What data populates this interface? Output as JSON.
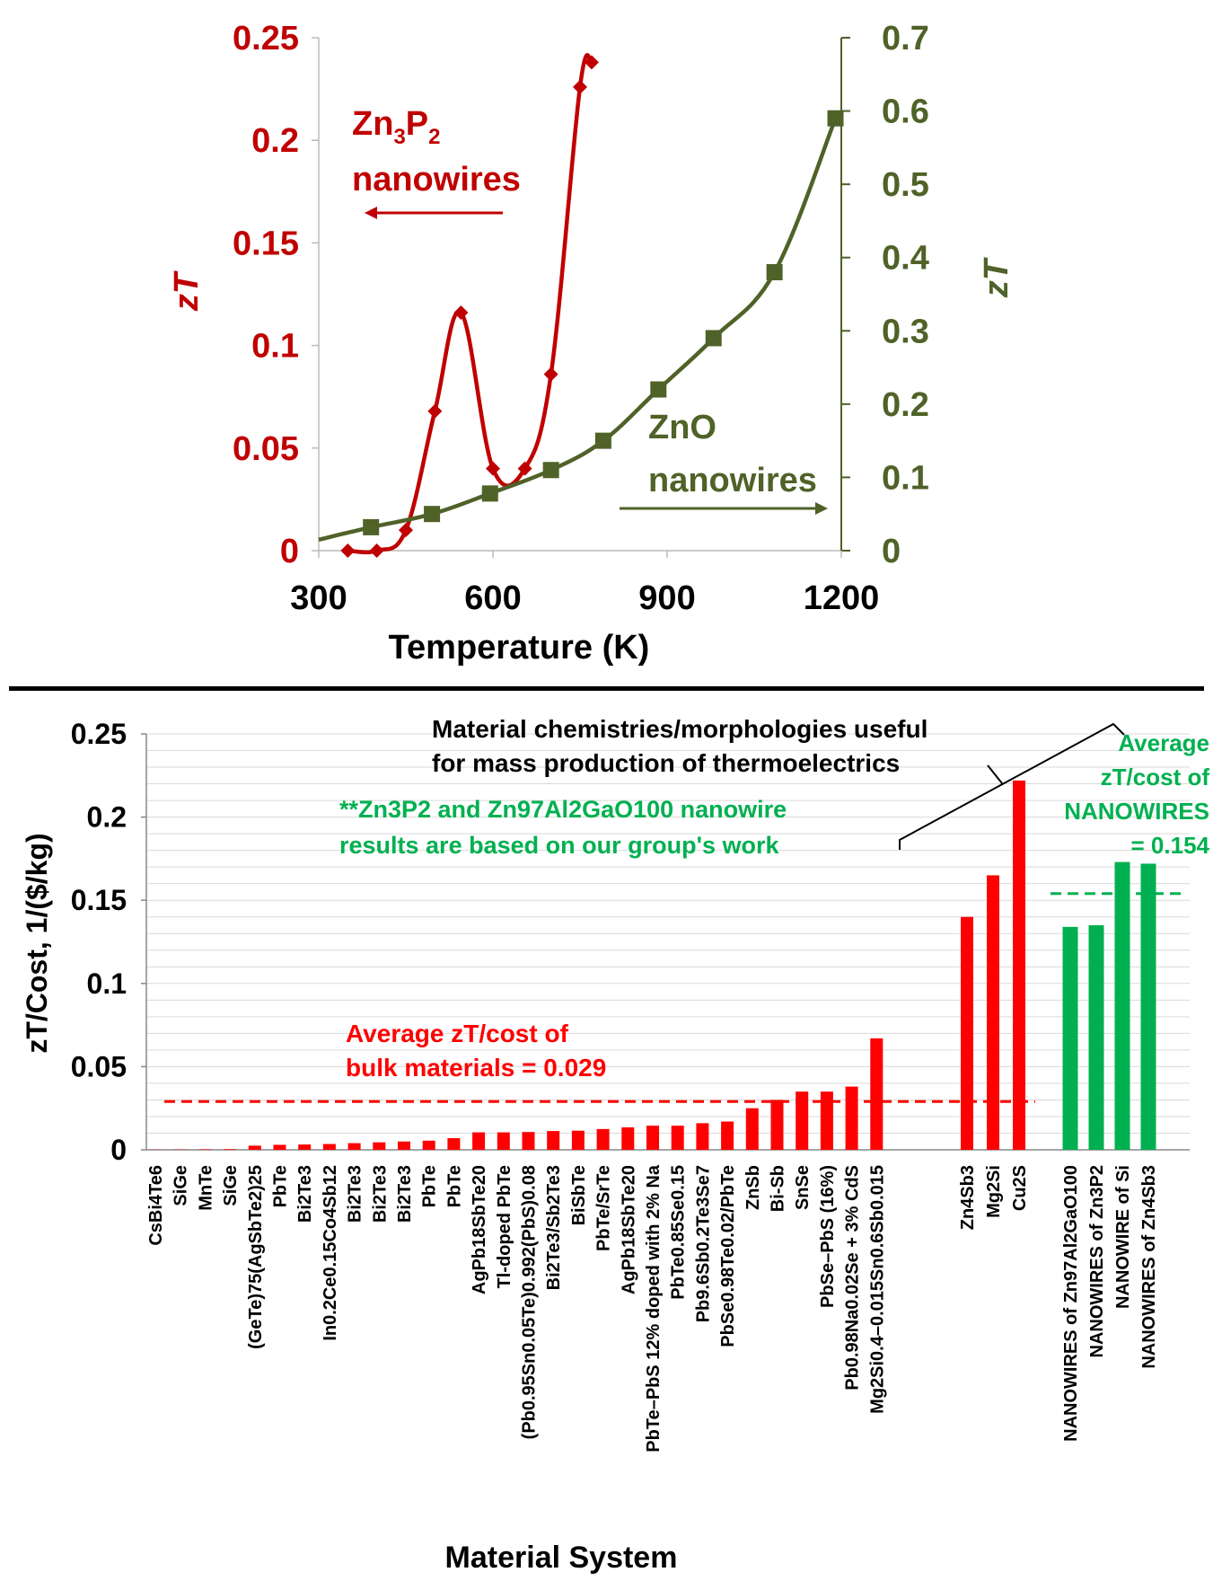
{
  "colors": {
    "zn3p2": "#c00000",
    "zno": "#4f6228",
    "bulk_bar": "#ff0000",
    "nanowire_bar": "#00b050",
    "nanowire_text": "#00b050",
    "bulk_text": "#ff0000"
  },
  "chart_data": [
    {
      "type": "line",
      "xlabel": "Temperature (K)",
      "ylabel_left": "zT",
      "ylabel_right": "zT",
      "xlim": [
        300,
        1200
      ],
      "xticks": [
        "300",
        "600",
        "900",
        "1200"
      ],
      "ylim_left": [
        0,
        0.25
      ],
      "yticks_left": [
        "0",
        "0.05",
        "0.1",
        "0.15",
        "0.2",
        "0.25"
      ],
      "ylim_right": [
        0,
        0.7
      ],
      "yticks_right": [
        "0",
        "0.1",
        "0.2",
        "0.3",
        "0.4",
        "0.5",
        "0.6",
        "0.7"
      ],
      "annotations": {
        "zn3p2_line1_base": "Zn",
        "zn3p2_line1_sub1": "3",
        "zn3p2_line1_mid": "P",
        "zn3p2_line1_sub2": "2",
        "zn3p2_line2": "nanowires",
        "zno_line1": "ZnO",
        "zno_line2": "nanowires"
      },
      "series": [
        {
          "axis": "left",
          "marker": "diamond",
          "x": [
            350,
            400,
            450,
            500,
            545,
            600,
            655,
            700,
            750,
            770
          ],
          "y": [
            0,
            0,
            0.01,
            0.068,
            0.116,
            0.04,
            0.04,
            0.086,
            0.226,
            0.238
          ]
        },
        {
          "axis": "right",
          "marker": "square",
          "x": [
            390,
            495,
            595,
            700,
            790,
            885,
            980,
            1085,
            1190
          ],
          "y": [
            0.032,
            0.05,
            0.078,
            0.11,
            0.15,
            0.22,
            0.29,
            0.38,
            0.59
          ]
        }
      ]
    },
    {
      "type": "bar",
      "ylabel": "zT/Cost, 1/($/kg)",
      "xlabel": "Material System",
      "ylim": [
        0,
        0.25
      ],
      "yticks": [
        "0",
        "0.05",
        "0.1",
        "0.15",
        "0.2",
        "0.25"
      ],
      "grid": true,
      "categories": [
        "CsBi4Te6",
        "SiGe",
        "MnTe",
        "SiGe",
        "(GeTe)75(AgSbTe2)25",
        "PbTe",
        "Bi2Te3",
        "In0.2Ce0.15Co4Sb12",
        "Bi2Te3",
        "Bi2Te3",
        "Bi2Te3",
        "PbTe",
        "PbTe",
        "AgPb18SbTe20",
        "Tl-doped PbTe",
        "(Pb0.95Sn0.05Te)0.992(PbS)0.08",
        "Bi2Te3/Sb2Te3",
        "BiSbTe",
        "PbTe/SrTe",
        "AgPb18SbTe20",
        "PbTe–PbS 12% doped with 2% Na",
        "PbTe0.85Se0.15",
        "Pb9.6Sb0.2Te3Se7",
        "PbSe0.98Te0.02/PbTe",
        "ZnSb",
        "Bi-Sb",
        "SnSe",
        "PbSe–PbS (16%)",
        "Pb0.98Na0.02Se + 3% CdS",
        "Mg2Si0.4–0.015Sn0.6Sb0.015",
        "Zn4Sb3",
        "Mg2Si",
        "Cu2S",
        "NANOWIRES of Zn97Al2GaO100",
        "NANOWIRES of Zn3P2",
        "NANOWIRE of Si",
        "NANOWIRES of Zn4Sb3"
      ],
      "values": [
        0.0001,
        0.0002,
        0.0003,
        0.0004,
        0.0025,
        0.003,
        0.0032,
        0.0035,
        0.004,
        0.0045,
        0.005,
        0.0055,
        0.007,
        0.0105,
        0.0105,
        0.0107,
        0.0113,
        0.0115,
        0.0125,
        0.0135,
        0.0145,
        0.0145,
        0.016,
        0.017,
        0.025,
        0.03,
        0.035,
        0.035,
        0.038,
        0.067,
        0.14,
        0.165,
        0.222,
        0.134,
        0.135,
        0.173,
        0.172
      ],
      "groups": [
        "bulk",
        "bulk",
        "bulk",
        "bulk",
        "bulk",
        "bulk",
        "bulk",
        "bulk",
        "bulk",
        "bulk",
        "bulk",
        "bulk",
        "bulk",
        "bulk",
        "bulk",
        "bulk",
        "bulk",
        "bulk",
        "bulk",
        "bulk",
        "bulk",
        "bulk",
        "bulk",
        "bulk",
        "bulk",
        "bulk",
        "bulk",
        "bulk",
        "bulk",
        "bulk",
        "bulk",
        "bulk",
        "bulk",
        "nanowire",
        "nanowire",
        "nanowire",
        "nanowire"
      ],
      "reference_lines": [
        {
          "value": 0.029,
          "group": "bulk"
        },
        {
          "value": 0.154,
          "group": "nanowire"
        }
      ],
      "annotations": {
        "bracket_line1": "Material chemistries/morphologies useful",
        "bracket_line2": "for mass production of thermoelectrics",
        "note_line1": "**Zn3P2 and Zn97Al2GaO100 nanowire",
        "note_line2": "results are based on our group's work",
        "avg_nano_line1": "Average",
        "avg_nano_line2": "zT/cost of",
        "avg_nano_line3": "NANOWIRES",
        "avg_nano_line4": "= 0.154",
        "avg_bulk_line1": "Average zT/cost of",
        "avg_bulk_line2": "bulk materials = 0.029"
      }
    }
  ]
}
